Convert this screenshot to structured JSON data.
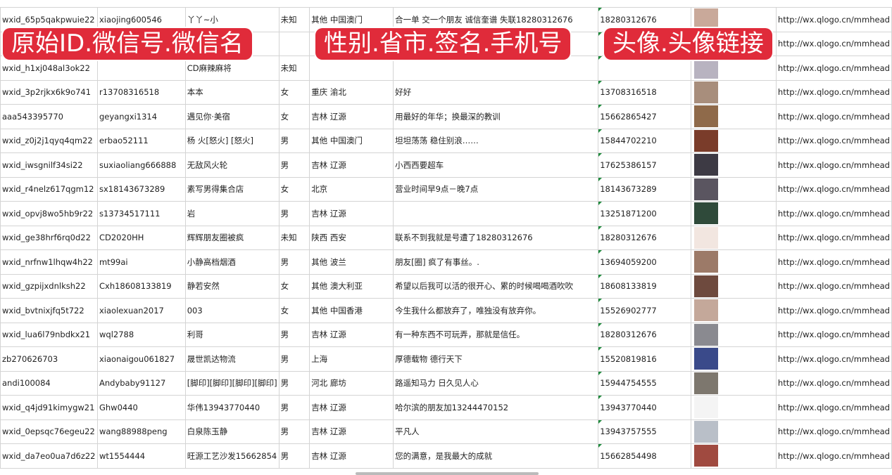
{
  "overlays": [
    "原始ID.微信号.微信名",
    "性别.省市.签名.手机号",
    "头像.头像链接"
  ],
  "rows": [
    {
      "id": "wxid_65p5qakpwuie22",
      "wx": "xiaojing600546",
      "name": "丫丫~小",
      "sex": "未知",
      "region": "其他 中国澳门",
      "sig": "合一单 交一个朋友 诚信奎谱 失联18280312676",
      "phone": "18280312676",
      "url": "http://wx.qlogo.cn/mmhead",
      "avatar": "#c9a99a"
    },
    {
      "id": "",
      "wx": "",
      "name": "",
      "sex": "",
      "region": "",
      "sig": "",
      "phone": "",
      "url": "http://wx.qlogo.cn/mmhead",
      "avatar": "#6a6f8f"
    },
    {
      "id": "wxid_h1xj048al3ok22",
      "wx": "",
      "name": "CD麻辣麻将",
      "sex": "未知",
      "region": "",
      "sig": "",
      "phone": "",
      "url": "http://wx.qlogo.cn/mmhead",
      "avatar": "#b8b3c0"
    },
    {
      "id": "wxid_3p2rjkx6k9o741",
      "wx": "r13708316518",
      "name": "本本",
      "sex": "女",
      "region": "重庆 渝北",
      "sig": "好好",
      "phone": "13708316518",
      "url": "http://wx.qlogo.cn/mmhead",
      "avatar": "#a88e7c"
    },
    {
      "id": "aaa543395770",
      "wx": "geyangxi1314",
      "name": "遇见你·美宿",
      "sex": "女",
      "region": "吉林 辽源",
      "sig": "用最好的年华；换最深的教训",
      "phone": "15662865427",
      "url": "http://wx.qlogo.cn/mmhead",
      "avatar": "#8f6a4a"
    },
    {
      "id": "wxid_z0j2j1qyq4qm22",
      "wx": "erbao52111",
      "name": "杨 火[怒火] [怒火]",
      "sex": "男",
      "region": "其他 中国澳门",
      "sig": "坦坦荡荡 稳住别浪……",
      "phone": "15844702210",
      "url": "http://wx.qlogo.cn/mmhead",
      "avatar": "#7a3c2a"
    },
    {
      "id": "wxid_iwsgnilf34si22",
      "wx": "suxiaoliang666888",
      "name": "无敌风火轮",
      "sex": "男",
      "region": "吉林 辽源",
      "sig": "小西西要超车",
      "phone": "17625386157",
      "url": "http://wx.qlogo.cn/mmhead",
      "avatar": "#3d3a44"
    },
    {
      "id": "wxid_r4nelz617qgm12",
      "wx": "sx18143673289",
      "name": "素写男得集合店",
      "sex": "女",
      "region": "北京",
      "sig": "营业时间早9点－晚7点",
      "phone": "18143673289",
      "url": "http://wx.qlogo.cn/mmhead",
      "avatar": "#5a5560"
    },
    {
      "id": "wxid_opvj8wo5hb9r22",
      "wx": "s13734517111",
      "name": "岩",
      "sex": "男",
      "region": "吉林 辽源",
      "sig": "",
      "phone": "13251871200",
      "url": "http://wx.qlogo.cn/mmhead",
      "avatar": "#2f4a3a"
    },
    {
      "id": "wxid_ge38hrf6rq0d22",
      "wx": "CD2020HH",
      "name": "辉辉朋友圈被疯",
      "sex": "未知",
      "region": "陕西 西安",
      "sig": "联系不到我就是号遭了18280312676",
      "phone": "18280312676",
      "url": "http://wx.qlogo.cn/mmhead",
      "avatar": "#f2e6e0"
    },
    {
      "id": "wxid_nrfnw1lhqw4h22",
      "wx": "mt99ai",
      "name": "小静高档烟酒",
      "sex": "男",
      "region": "其他 波兰",
      "sig": "朋友[圈] 疯了有事丝。.",
      "phone": "13694059200",
      "url": "http://wx.qlogo.cn/mmhead",
      "avatar": "#9c7a68"
    },
    {
      "id": "wxid_gzpijxdnlksh22",
      "wx": "Cxh18608133819",
      "name": "静若安然",
      "sex": "女",
      "region": "其他 澳大利亚",
      "sig": "希望以后我可以活的很开心、累的时候喝喝酒吹吹",
      "phone": "18608133819",
      "url": "http://wx.qlogo.cn/mmhead",
      "avatar": "#6e4a3e"
    },
    {
      "id": "wxid_bvtnixjfq5t722",
      "wx": "xiaolexuan2017",
      "name": "003",
      "sex": "女",
      "region": "其他 中国香港",
      "sig": "今生我什么都放弃了，唯独没有放弃你。",
      "phone": "15526902777",
      "url": "http://wx.qlogo.cn/mmhead",
      "avatar": "#c4a89a"
    },
    {
      "id": "wxid_lua6l79nbdkx21",
      "wx": "wql2788",
      "name": "利哥",
      "sex": "男",
      "region": "吉林 辽源",
      "sig": "有一种东西不可玩弄，那就是信任。",
      "phone": "18280312676",
      "url": "http://wx.qlogo.cn/mmhead",
      "avatar": "#8a8a90"
    },
    {
      "id": "zb270626703",
      "wx": "xiaonaigou061827",
      "name": "晟世凯达物流",
      "sex": "男",
      "region": "上海",
      "sig": "厚德载物 德行天下",
      "phone": "15520819816",
      "url": "http://wx.qlogo.cn/mmhead",
      "avatar": "#3a4a8a"
    },
    {
      "id": "andi100084",
      "wx": "Andybaby91127",
      "name": "[脚印][脚印][脚印][脚印]",
      "sex": "男",
      "region": "河北 廊坊",
      "sig": "路遥知马力 日久见人心",
      "phone": "15944754555",
      "url": "http://wx.qlogo.cn/mmhead",
      "avatar": "#7d776e"
    },
    {
      "id": "wxid_q4jd91kimygw21",
      "wx": "Ghw0440",
      "name": "华伟13943770440",
      "sex": "男",
      "region": "吉林 辽源",
      "sig": "哈尔滨的朋友加13244470152",
      "phone": "13943770440",
      "url": "http://wx.qlogo.cn/mmhead",
      "avatar": "#f4f4f4"
    },
    {
      "id": "wxid_0epsqc76egeu22",
      "wx": "wang88988peng",
      "name": "白泉陈玉静",
      "sex": "男",
      "region": "吉林 辽源",
      "sig": "平凡人",
      "phone": "13943757555",
      "url": "http://wx.qlogo.cn/mmhead",
      "avatar": "#b9bfc8"
    },
    {
      "id": "wxid_da7eo0ua7d6z22",
      "wx": "wt1554444",
      "name": "旺源工艺沙发15662854",
      "sex": "男",
      "region": "吉林 辽源",
      "sig": "您的满意，是我最大的成就",
      "phone": "15662854498",
      "url": "http://wx.qlogo.cn/mmhead",
      "avatar": "#a04a40"
    }
  ]
}
